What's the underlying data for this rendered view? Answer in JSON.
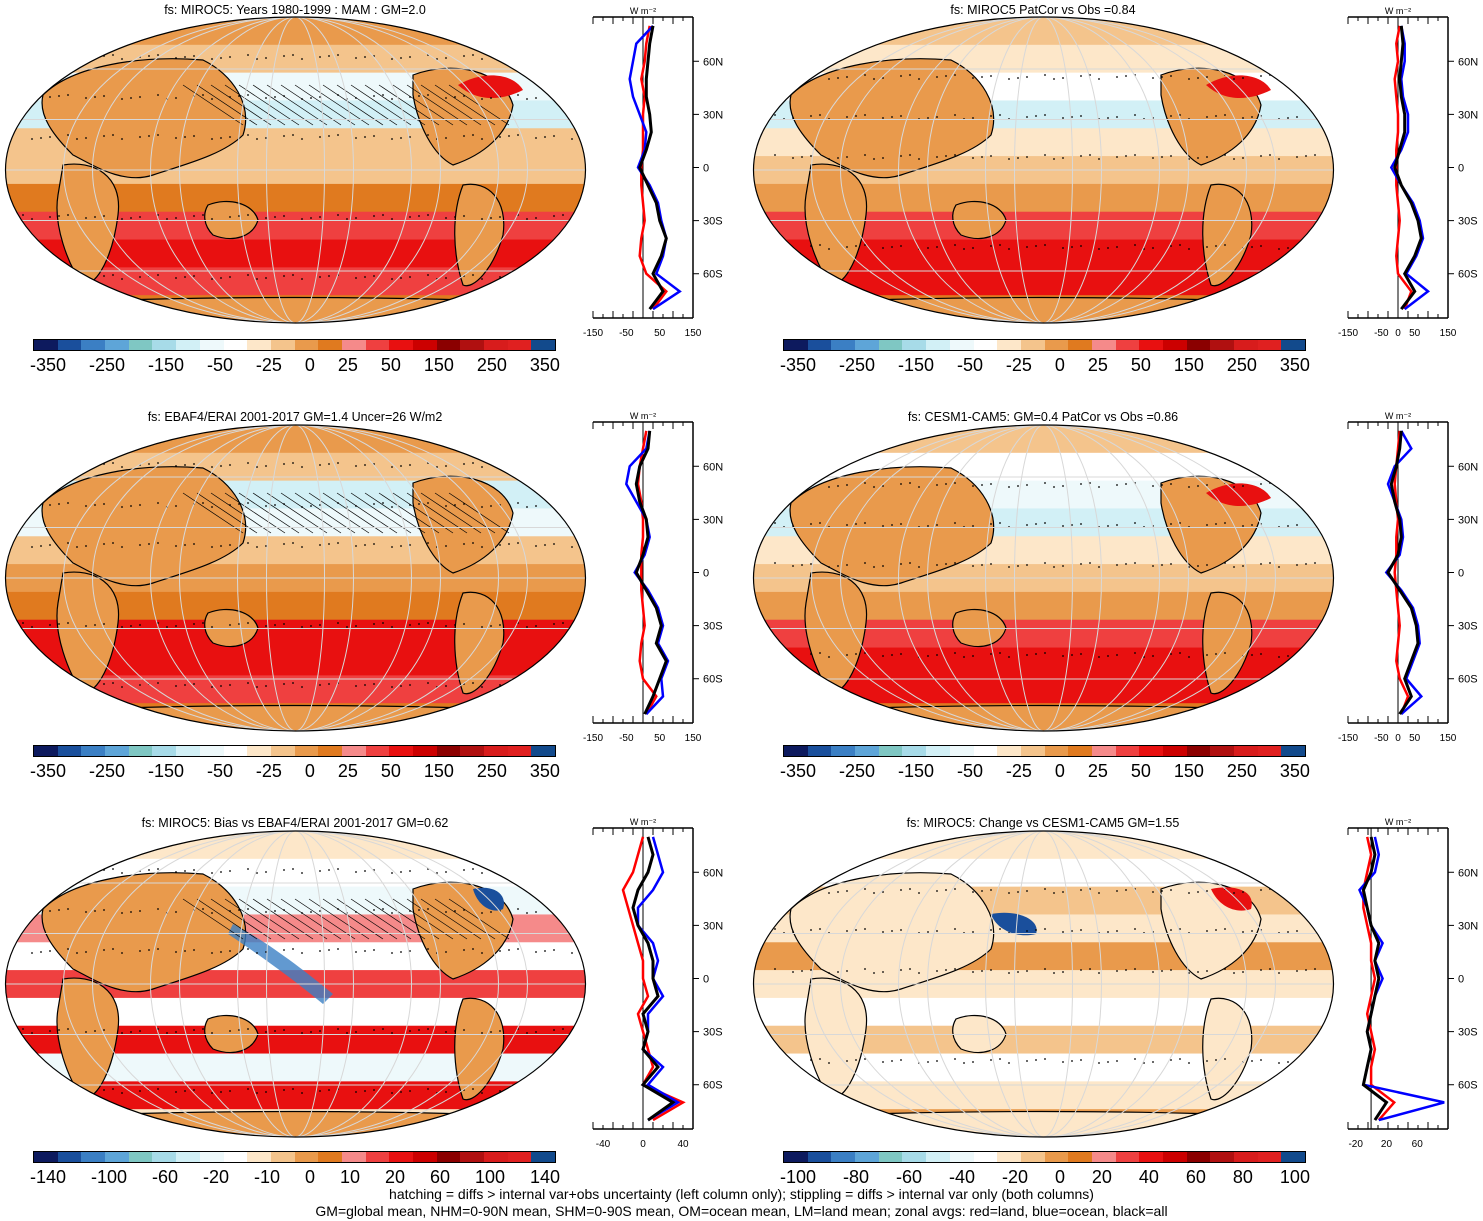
{
  "panels": [
    {
      "title": "fs: MIROC5: Years 1980-1999 : MAM : GM=2.0",
      "colorbar_labels": [
        "-350",
        "-250",
        "-150",
        "-50",
        "-25",
        "0",
        "25",
        "50",
        "150",
        "250",
        "350"
      ],
      "zonal_xticks": [
        "-150",
        "-50",
        "50",
        "150"
      ],
      "zonal_xrange": [
        -150,
        150
      ]
    },
    {
      "title": "fs: MIROC5 PatCor vs Obs =0.84",
      "colorbar_labels": [
        "-350",
        "-250",
        "-150",
        "-50",
        "-25",
        "0",
        "25",
        "50",
        "150",
        "250",
        "350"
      ],
      "zonal_xticks": [
        "-150",
        "-50",
        "0",
        "50",
        "150"
      ],
      "zonal_xrange": [
        -150,
        150
      ]
    },
    {
      "title": "fs: EBAF4/ERAI 2001-2017 GM=1.4 Uncer=26 W/m2",
      "colorbar_labels": [
        "-350",
        "-250",
        "-150",
        "-50",
        "-25",
        "0",
        "25",
        "50",
        "150",
        "250",
        "350"
      ],
      "zonal_xticks": [
        "-150",
        "-50",
        "50",
        "150"
      ],
      "zonal_xrange": [
        -150,
        150
      ]
    },
    {
      "title": "fs: CESM1-CAM5: GM=0.4 PatCor vs Obs =0.86",
      "colorbar_labels": [
        "-350",
        "-250",
        "-150",
        "-50",
        "-25",
        "0",
        "25",
        "50",
        "150",
        "250",
        "350"
      ],
      "zonal_xticks": [
        "-150",
        "-50",
        "0",
        "50",
        "150"
      ],
      "zonal_xrange": [
        -150,
        150
      ]
    },
    {
      "title": "fs: MIROC5: Bias vs EBAF4/ERAI 2001-2017 GM=0.62",
      "colorbar_labels": [
        "-140",
        "-100",
        "-60",
        "-20",
        "-10",
        "0",
        "10",
        "20",
        "60",
        "100",
        "140"
      ],
      "zonal_xticks": [
        "-40",
        "0",
        "40"
      ],
      "zonal_xrange": [
        -50,
        50
      ]
    },
    {
      "title": "fs: MIROC5: Change vs CESM1-CAM5 GM=1.55",
      "colorbar_labels": [
        "-100",
        "-80",
        "-60",
        "-40",
        "-20",
        "0",
        "20",
        "40",
        "60",
        "80",
        "100"
      ],
      "zonal_xticks": [
        "-20",
        "20",
        "60"
      ],
      "zonal_xrange": [
        -30,
        100
      ]
    }
  ],
  "zonal_units": "W m⁻²",
  "lat_labels": [
    "60N",
    "30N",
    "0",
    "30S",
    "60S"
  ],
  "colorbar_colors": [
    "#0d1a5e",
    "#1a4f9c",
    "#3b7fc4",
    "#5ea5d8",
    "#7fc7c3",
    "#a7dbe8",
    "#d2f0f6",
    "#eef9fb",
    "#ffffff",
    "#fde7c9",
    "#f4c48c",
    "#e99a4c",
    "#e07a1f",
    "#f58a8a",
    "#ef4040",
    "#e81010",
    "#cc0000",
    "#8b0000",
    "#b01010",
    "#d81c1c",
    "#e02020",
    "#124a8c"
  ],
  "footer": [
    "hatching = diffs > internal var+obs uncertainty (left column only); stippling = diffs > internal var only (both columns)",
    "GM=global mean, NHM=0-90N mean, SHM=0-90S mean, OM=ocean mean, LM=land mean; zonal avgs: red=land, blue=ocean, black=all"
  ],
  "chart_data": [
    {
      "type": "heatmap",
      "title": "fs: MIROC5: Years 1980-1999 : MAM : GM=2.0",
      "colorbar": [
        -350,
        -250,
        -150,
        -50,
        -25,
        0,
        25,
        50,
        150,
        250,
        350
      ],
      "zonal": {
        "lat": [
          80,
          70,
          60,
          50,
          40,
          30,
          20,
          10,
          0,
          -10,
          -20,
          -30,
          -40,
          -50,
          -60,
          -70,
          -80
        ],
        "all": [
          30,
          20,
          15,
          10,
          10,
          20,
          25,
          10,
          -10,
          15,
          40,
          50,
          70,
          55,
          30,
          60,
          20
        ],
        "land": [
          20,
          10,
          5,
          -5,
          5,
          0,
          0,
          0,
          -5,
          -5,
          0,
          5,
          -5,
          -10,
          10,
          70,
          30
        ],
        "ocean": [
          30,
          -20,
          -30,
          -40,
          -30,
          -10,
          10,
          5,
          -15,
          20,
          45,
          55,
          70,
          60,
          40,
          110,
          30
        ]
      }
    },
    {
      "type": "heatmap",
      "title": "fs: MIROC5 PatCor vs Obs =0.84",
      "colorbar": [
        -350,
        -250,
        -150,
        -50,
        -25,
        0,
        25,
        50,
        150,
        250,
        350
      ],
      "zonal": {
        "lat": [
          80,
          70,
          60,
          50,
          40,
          30,
          20,
          10,
          0,
          -10,
          -20,
          -30,
          -40,
          -50,
          -60,
          -70,
          -80
        ],
        "all": [
          10,
          15,
          10,
          5,
          10,
          20,
          20,
          5,
          -10,
          10,
          40,
          60,
          70,
          50,
          20,
          50,
          10
        ],
        "land": [
          5,
          -5,
          0,
          -10,
          -5,
          0,
          0,
          -5,
          -5,
          -5,
          0,
          5,
          0,
          -5,
          0,
          40,
          20
        ],
        "ocean": [
          10,
          20,
          20,
          10,
          15,
          30,
          30,
          10,
          -20,
          10,
          45,
          65,
          75,
          55,
          25,
          90,
          20
        ]
      }
    },
    {
      "type": "heatmap",
      "title": "fs: EBAF4/ERAI 2001-2017 GM=1.4 Uncer=26 W/m2",
      "colorbar": [
        -350,
        -250,
        -150,
        -50,
        -25,
        0,
        25,
        50,
        150,
        250,
        350
      ],
      "zonal": {
        "lat": [
          80,
          70,
          60,
          50,
          40,
          30,
          20,
          10,
          0,
          -10,
          -20,
          -30,
          -40,
          -50,
          -60,
          -70,
          -80
        ],
        "all": [
          20,
          15,
          -10,
          -20,
          -10,
          10,
          15,
          0,
          -20,
          10,
          40,
          55,
          40,
          70,
          50,
          30,
          5
        ],
        "land": [
          10,
          0,
          -10,
          -15,
          -5,
          0,
          0,
          -5,
          -5,
          -5,
          0,
          5,
          -5,
          -10,
          0,
          40,
          10
        ],
        "ocean": [
          20,
          10,
          -40,
          -50,
          -20,
          10,
          20,
          5,
          -25,
          15,
          45,
          60,
          45,
          75,
          55,
          60,
          10
        ]
      }
    },
    {
      "type": "heatmap",
      "title": "fs: CESM1-CAM5: GM=0.4 PatCor vs Obs =0.86",
      "colorbar": [
        -350,
        -250,
        -150,
        -50,
        -25,
        0,
        25,
        50,
        150,
        250,
        350
      ],
      "zonal": {
        "lat": [
          80,
          70,
          60,
          50,
          40,
          30,
          20,
          10,
          0,
          -10,
          -20,
          -30,
          -40,
          -50,
          -60,
          -70,
          -80
        ],
        "all": [
          10,
          5,
          -5,
          -20,
          -10,
          5,
          10,
          0,
          -30,
          5,
          40,
          55,
          60,
          40,
          20,
          40,
          5
        ],
        "land": [
          5,
          0,
          -5,
          -10,
          -5,
          0,
          -5,
          -5,
          -10,
          -5,
          0,
          5,
          0,
          -5,
          5,
          30,
          10
        ],
        "ocean": [
          10,
          40,
          -10,
          -30,
          -10,
          10,
          15,
          5,
          -35,
          10,
          45,
          60,
          65,
          45,
          25,
          70,
          10
        ]
      }
    },
    {
      "type": "heatmap",
      "title": "fs: MIROC5: Bias vs EBAF4/ERAI 2001-2017 GM=0.62",
      "colorbar": [
        -140,
        -100,
        -60,
        -20,
        -10,
        0,
        10,
        20,
        60,
        100,
        140
      ],
      "zonal": {
        "lat": [
          80,
          70,
          60,
          50,
          40,
          30,
          20,
          10,
          0,
          -10,
          -20,
          -30,
          -40,
          -50,
          -60,
          -70,
          -80
        ],
        "all": [
          5,
          10,
          5,
          -5,
          -10,
          -5,
          5,
          10,
          10,
          15,
          0,
          5,
          0,
          15,
          0,
          30,
          5
        ],
        "land": [
          0,
          -5,
          -10,
          -20,
          -15,
          -10,
          -5,
          0,
          0,
          5,
          -5,
          0,
          5,
          10,
          0,
          40,
          10
        ],
        "ocean": [
          10,
          15,
          20,
          10,
          -5,
          -5,
          10,
          15,
          10,
          20,
          5,
          5,
          0,
          20,
          5,
          35,
          5
        ]
      }
    },
    {
      "type": "heatmap",
      "title": "fs: MIROC5: Change vs CESM1-CAM5 GM=1.55",
      "colorbar": [
        -100,
        -80,
        -60,
        -40,
        -20,
        0,
        20,
        40,
        60,
        80,
        100
      ],
      "zonal": {
        "lat": [
          80,
          70,
          60,
          50,
          40,
          30,
          20,
          10,
          0,
          -10,
          -20,
          -30,
          -40,
          -50,
          -60,
          -70,
          -80
        ],
        "all": [
          0,
          5,
          0,
          -10,
          -5,
          0,
          10,
          5,
          10,
          5,
          0,
          -5,
          0,
          -5,
          -10,
          20,
          5
        ],
        "land": [
          -5,
          0,
          -5,
          -10,
          -10,
          -5,
          0,
          0,
          5,
          0,
          -5,
          0,
          5,
          0,
          0,
          30,
          10
        ],
        "ocean": [
          5,
          10,
          5,
          -15,
          -5,
          0,
          15,
          5,
          15,
          5,
          0,
          -5,
          0,
          -5,
          -10,
          95,
          10
        ]
      }
    }
  ]
}
